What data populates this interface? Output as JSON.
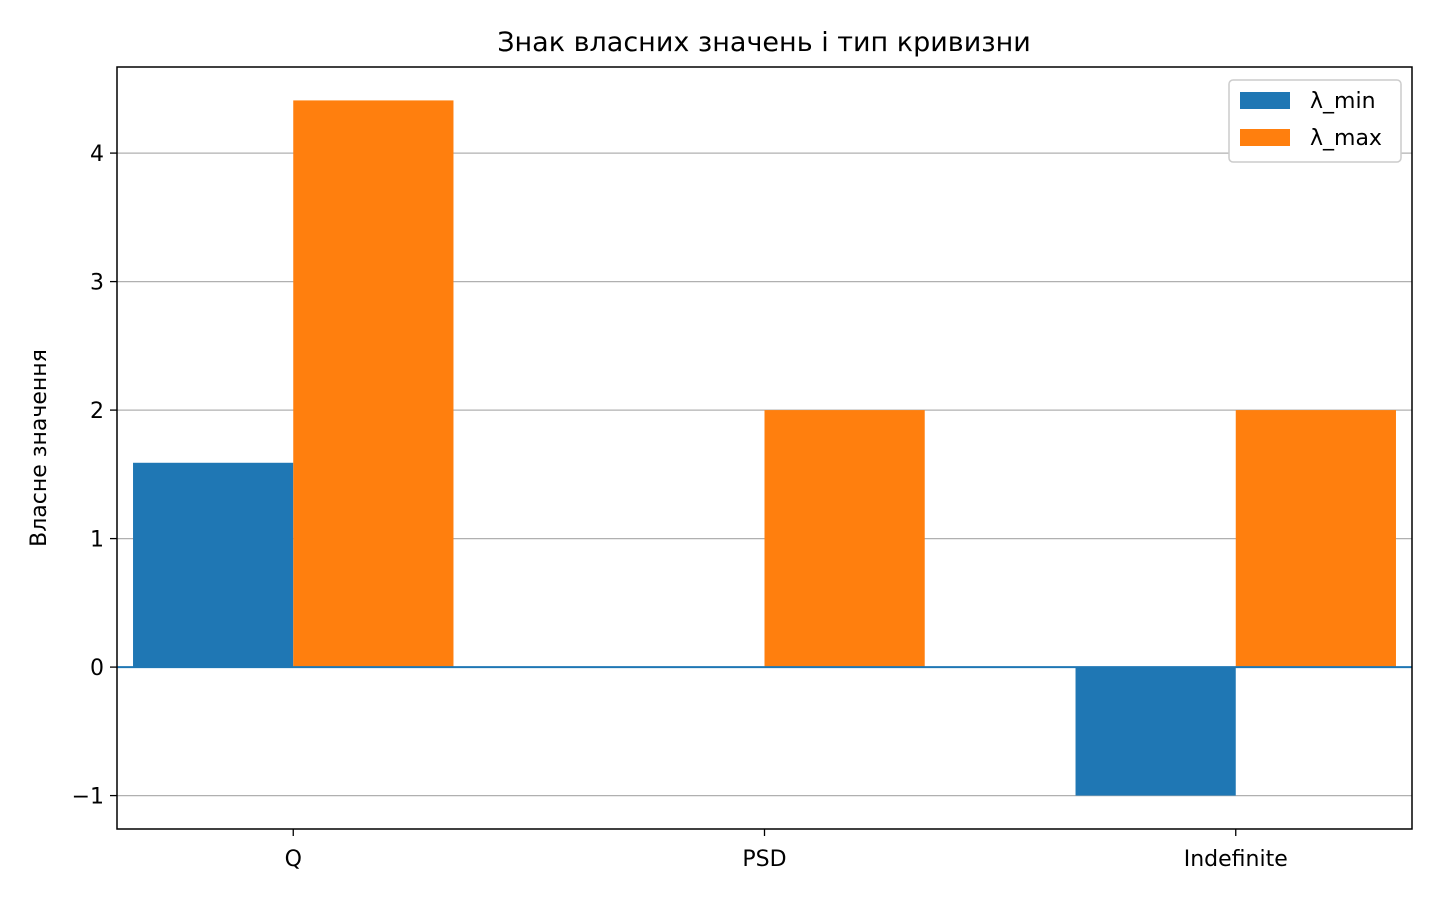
{
  "chart_data": {
    "type": "bar",
    "title": "Знак власних значень і тип кривизни",
    "xlabel": "",
    "ylabel": "Власне значення",
    "categories": [
      "Q",
      "PSD",
      "Indefinite"
    ],
    "series": [
      {
        "name": "λ_min",
        "values": [
          1.59,
          0.0,
          -1.0
        ],
        "color": "#1f77b4"
      },
      {
        "name": "λ_max",
        "values": [
          4.41,
          2.0,
          2.0
        ],
        "color": "#ff7f0e"
      }
    ],
    "ylim": [
      -1.26,
      4.67
    ],
    "yticks": [
      -1,
      0,
      1,
      2,
      3,
      4
    ],
    "ytick_labels": [
      "−1",
      "0",
      "1",
      "2",
      "3",
      "4"
    ],
    "grid": "y",
    "zero_line_color": "#1f77b4",
    "legend_position": "top-right"
  }
}
